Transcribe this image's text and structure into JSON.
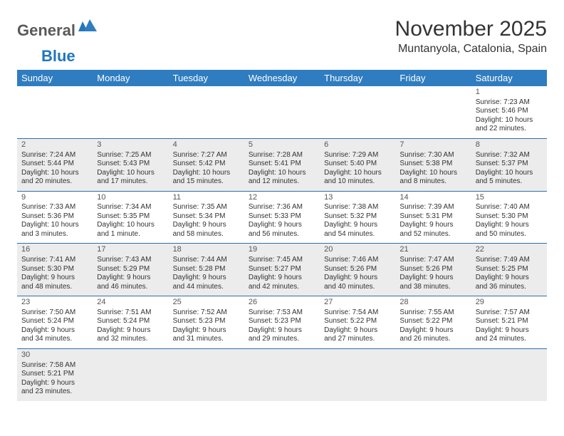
{
  "brand": {
    "word1": "General",
    "word2": "Blue",
    "word1_color": "#5a5a5a",
    "word2_color": "#2176bc"
  },
  "title": "November 2025",
  "location": "Muntanyola, Catalonia, Spain",
  "colors": {
    "header_bg": "#2f7dc0",
    "header_text": "#ffffff",
    "row_alt_bg": "#ececec",
    "row_border": "#2f6fa8",
    "text": "#333333"
  },
  "weekdays": [
    "Sunday",
    "Monday",
    "Tuesday",
    "Wednesday",
    "Thursday",
    "Friday",
    "Saturday"
  ],
  "weeks": [
    [
      {
        "n": "",
        "sr": "",
        "ss": "",
        "dl": ""
      },
      {
        "n": "",
        "sr": "",
        "ss": "",
        "dl": ""
      },
      {
        "n": "",
        "sr": "",
        "ss": "",
        "dl": ""
      },
      {
        "n": "",
        "sr": "",
        "ss": "",
        "dl": ""
      },
      {
        "n": "",
        "sr": "",
        "ss": "",
        "dl": ""
      },
      {
        "n": "",
        "sr": "",
        "ss": "",
        "dl": ""
      },
      {
        "n": "1",
        "sr": "Sunrise: 7:23 AM",
        "ss": "Sunset: 5:46 PM",
        "dl": "Daylight: 10 hours and 22 minutes."
      }
    ],
    [
      {
        "n": "2",
        "sr": "Sunrise: 7:24 AM",
        "ss": "Sunset: 5:44 PM",
        "dl": "Daylight: 10 hours and 20 minutes."
      },
      {
        "n": "3",
        "sr": "Sunrise: 7:25 AM",
        "ss": "Sunset: 5:43 PM",
        "dl": "Daylight: 10 hours and 17 minutes."
      },
      {
        "n": "4",
        "sr": "Sunrise: 7:27 AM",
        "ss": "Sunset: 5:42 PM",
        "dl": "Daylight: 10 hours and 15 minutes."
      },
      {
        "n": "5",
        "sr": "Sunrise: 7:28 AM",
        "ss": "Sunset: 5:41 PM",
        "dl": "Daylight: 10 hours and 12 minutes."
      },
      {
        "n": "6",
        "sr": "Sunrise: 7:29 AM",
        "ss": "Sunset: 5:40 PM",
        "dl": "Daylight: 10 hours and 10 minutes."
      },
      {
        "n": "7",
        "sr": "Sunrise: 7:30 AM",
        "ss": "Sunset: 5:38 PM",
        "dl": "Daylight: 10 hours and 8 minutes."
      },
      {
        "n": "8",
        "sr": "Sunrise: 7:32 AM",
        "ss": "Sunset: 5:37 PM",
        "dl": "Daylight: 10 hours and 5 minutes."
      }
    ],
    [
      {
        "n": "9",
        "sr": "Sunrise: 7:33 AM",
        "ss": "Sunset: 5:36 PM",
        "dl": "Daylight: 10 hours and 3 minutes."
      },
      {
        "n": "10",
        "sr": "Sunrise: 7:34 AM",
        "ss": "Sunset: 5:35 PM",
        "dl": "Daylight: 10 hours and 1 minute."
      },
      {
        "n": "11",
        "sr": "Sunrise: 7:35 AM",
        "ss": "Sunset: 5:34 PM",
        "dl": "Daylight: 9 hours and 58 minutes."
      },
      {
        "n": "12",
        "sr": "Sunrise: 7:36 AM",
        "ss": "Sunset: 5:33 PM",
        "dl": "Daylight: 9 hours and 56 minutes."
      },
      {
        "n": "13",
        "sr": "Sunrise: 7:38 AM",
        "ss": "Sunset: 5:32 PM",
        "dl": "Daylight: 9 hours and 54 minutes."
      },
      {
        "n": "14",
        "sr": "Sunrise: 7:39 AM",
        "ss": "Sunset: 5:31 PM",
        "dl": "Daylight: 9 hours and 52 minutes."
      },
      {
        "n": "15",
        "sr": "Sunrise: 7:40 AM",
        "ss": "Sunset: 5:30 PM",
        "dl": "Daylight: 9 hours and 50 minutes."
      }
    ],
    [
      {
        "n": "16",
        "sr": "Sunrise: 7:41 AM",
        "ss": "Sunset: 5:30 PM",
        "dl": "Daylight: 9 hours and 48 minutes."
      },
      {
        "n": "17",
        "sr": "Sunrise: 7:43 AM",
        "ss": "Sunset: 5:29 PM",
        "dl": "Daylight: 9 hours and 46 minutes."
      },
      {
        "n": "18",
        "sr": "Sunrise: 7:44 AM",
        "ss": "Sunset: 5:28 PM",
        "dl": "Daylight: 9 hours and 44 minutes."
      },
      {
        "n": "19",
        "sr": "Sunrise: 7:45 AM",
        "ss": "Sunset: 5:27 PM",
        "dl": "Daylight: 9 hours and 42 minutes."
      },
      {
        "n": "20",
        "sr": "Sunrise: 7:46 AM",
        "ss": "Sunset: 5:26 PM",
        "dl": "Daylight: 9 hours and 40 minutes."
      },
      {
        "n": "21",
        "sr": "Sunrise: 7:47 AM",
        "ss": "Sunset: 5:26 PM",
        "dl": "Daylight: 9 hours and 38 minutes."
      },
      {
        "n": "22",
        "sr": "Sunrise: 7:49 AM",
        "ss": "Sunset: 5:25 PM",
        "dl": "Daylight: 9 hours and 36 minutes."
      }
    ],
    [
      {
        "n": "23",
        "sr": "Sunrise: 7:50 AM",
        "ss": "Sunset: 5:24 PM",
        "dl": "Daylight: 9 hours and 34 minutes."
      },
      {
        "n": "24",
        "sr": "Sunrise: 7:51 AM",
        "ss": "Sunset: 5:24 PM",
        "dl": "Daylight: 9 hours and 32 minutes."
      },
      {
        "n": "25",
        "sr": "Sunrise: 7:52 AM",
        "ss": "Sunset: 5:23 PM",
        "dl": "Daylight: 9 hours and 31 minutes."
      },
      {
        "n": "26",
        "sr": "Sunrise: 7:53 AM",
        "ss": "Sunset: 5:23 PM",
        "dl": "Daylight: 9 hours and 29 minutes."
      },
      {
        "n": "27",
        "sr": "Sunrise: 7:54 AM",
        "ss": "Sunset: 5:22 PM",
        "dl": "Daylight: 9 hours and 27 minutes."
      },
      {
        "n": "28",
        "sr": "Sunrise: 7:55 AM",
        "ss": "Sunset: 5:22 PM",
        "dl": "Daylight: 9 hours and 26 minutes."
      },
      {
        "n": "29",
        "sr": "Sunrise: 7:57 AM",
        "ss": "Sunset: 5:21 PM",
        "dl": "Daylight: 9 hours and 24 minutes."
      }
    ],
    [
      {
        "n": "30",
        "sr": "Sunrise: 7:58 AM",
        "ss": "Sunset: 5:21 PM",
        "dl": "Daylight: 9 hours and 23 minutes."
      },
      {
        "n": "",
        "sr": "",
        "ss": "",
        "dl": ""
      },
      {
        "n": "",
        "sr": "",
        "ss": "",
        "dl": ""
      },
      {
        "n": "",
        "sr": "",
        "ss": "",
        "dl": ""
      },
      {
        "n": "",
        "sr": "",
        "ss": "",
        "dl": ""
      },
      {
        "n": "",
        "sr": "",
        "ss": "",
        "dl": ""
      },
      {
        "n": "",
        "sr": "",
        "ss": "",
        "dl": ""
      }
    ]
  ]
}
